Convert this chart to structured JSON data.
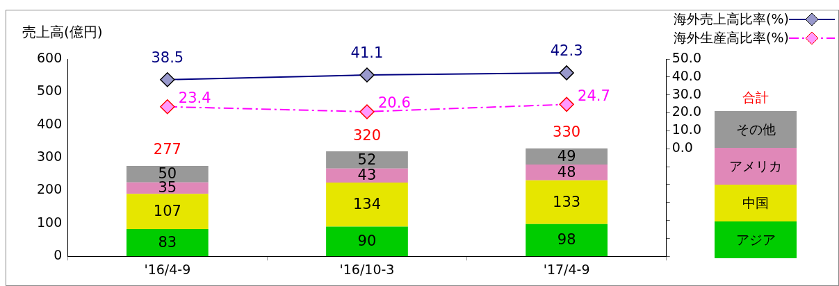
{
  "chart_data": {
    "type": "bar",
    "stacked": true,
    "ylabel": "売上高(億円)",
    "legend_title": "合計",
    "legend": "right",
    "categories": [
      "'16/4-9",
      "'16/10-3",
      "'17/4-9"
    ],
    "ylim": [
      0,
      600
    ],
    "yticks": [
      0,
      100,
      200,
      300,
      400,
      500,
      600
    ],
    "y2lim": [
      -60,
      50
    ],
    "y2ticks": [
      {
        "value": -60,
        "label": null
      },
      {
        "value": -50,
        "label": null
      },
      {
        "value": -40,
        "label": null
      },
      {
        "value": -30,
        "label": null
      },
      {
        "value": -20,
        "label": null
      },
      {
        "value": -10,
        "label": null
      },
      {
        "value": 0,
        "label": "0.0"
      },
      {
        "value": 10,
        "label": "10.0"
      },
      {
        "value": 20,
        "label": "20.0"
      },
      {
        "value": 30,
        "label": "30.0"
      },
      {
        "value": 40,
        "label": "40.0"
      },
      {
        "value": 50,
        "label": "50.0"
      }
    ],
    "data_labels": true,
    "totals": [
      "277",
      "320",
      "330"
    ],
    "series": [
      {
        "name": "アジア",
        "color": "#00cc00",
        "values": [
          83,
          90,
          98
        ]
      },
      {
        "name": "中国",
        "color": "#e6e600",
        "values": [
          107,
          134,
          133
        ]
      },
      {
        "name": "アメリカ",
        "color": "#e088b8",
        "values": [
          35,
          43,
          48
        ]
      },
      {
        "name": "その他",
        "color": "#999999",
        "values": [
          50,
          52,
          49
        ]
      },
      {
        "name": "海外売上高比率(%)",
        "type": "line",
        "axis": "y2",
        "color": "#000080",
        "marker": "diamond",
        "line_style": "solid",
        "values": [
          38.5,
          41.1,
          42.3
        ]
      },
      {
        "name": "海外生産高比率(%)",
        "type": "line",
        "axis": "y2",
        "color": "#ff00ff",
        "marker": "diamond",
        "line_style": "dashed",
        "values": [
          23.4,
          20.6,
          24.7
        ]
      }
    ]
  }
}
